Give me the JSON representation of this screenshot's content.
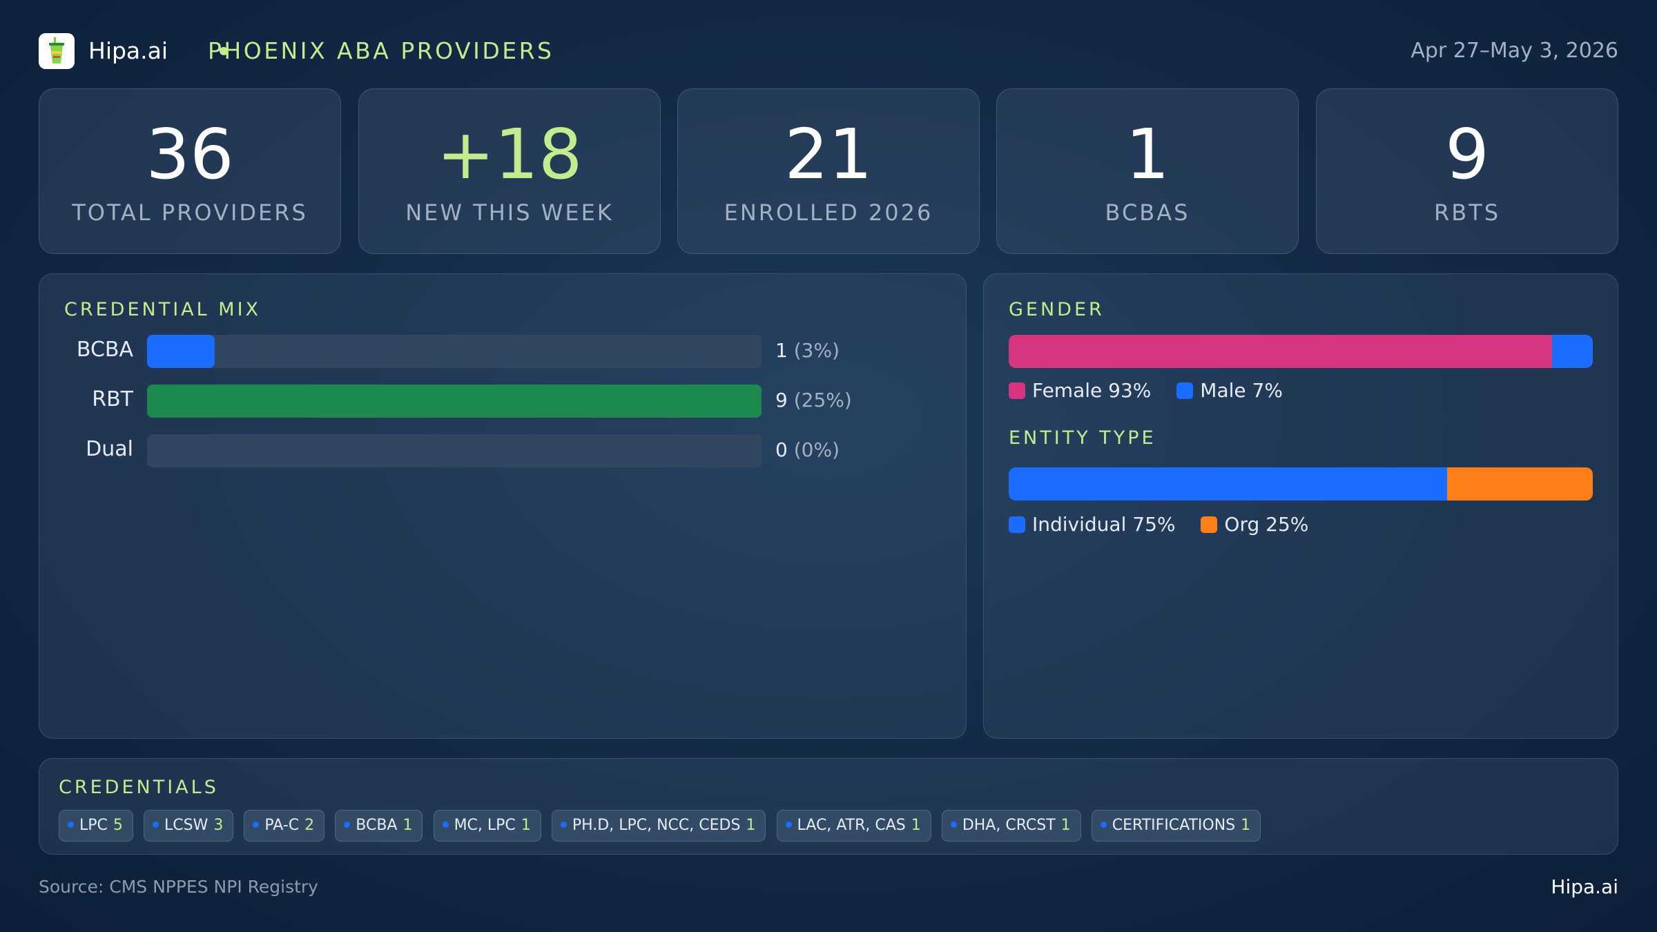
{
  "header": {
    "logo_icon": "cup-icon",
    "brand": "Hipa.ai",
    "title": "PHOENIX ABA PROVIDERS",
    "date_range": "Apr 27–May 3, 2026"
  },
  "kpis": [
    {
      "value": "36",
      "label": "TOTAL PROVIDERS"
    },
    {
      "value": "+18",
      "label": "NEW THIS WEEK"
    },
    {
      "value": "21",
      "label": "ENROLLED 2026"
    },
    {
      "value": "1",
      "label": "BCBAS"
    },
    {
      "value": "9",
      "label": "RBTS"
    }
  ],
  "credential_mix": {
    "title": "CREDENTIAL MIX",
    "rows": [
      {
        "label": "BCBA",
        "count": "1",
        "pct_text": "(3%)",
        "fraction": 0.11,
        "color": "#1a6dff"
      },
      {
        "label": "RBT",
        "count": "9",
        "pct_text": "(25%)",
        "fraction": 1.0,
        "color": "#1c8a4f"
      },
      {
        "label": "Dual",
        "count": "0",
        "pct_text": "(0%)",
        "fraction": 0.0,
        "color": "#1a6dff"
      }
    ]
  },
  "gender": {
    "title": "GENDER",
    "segments": [
      {
        "label": "Female 93%",
        "fraction": 0.93,
        "color": "#d6357f"
      },
      {
        "label": "Male 7%",
        "fraction": 0.07,
        "color": "#1a6dff"
      }
    ]
  },
  "entity_type": {
    "title": "ENTITY TYPE",
    "segments": [
      {
        "label": "Individual 75%",
        "fraction": 0.75,
        "color": "#1a6dff"
      },
      {
        "label": "Org 25%",
        "fraction": 0.25,
        "color": "#ff7e1a"
      }
    ]
  },
  "credentials": {
    "title": "CREDENTIALS",
    "chips": [
      {
        "name": "LPC",
        "count": "5"
      },
      {
        "name": "LCSW",
        "count": "3"
      },
      {
        "name": "PA-C",
        "count": "2"
      },
      {
        "name": "BCBA",
        "count": "1"
      },
      {
        "name": "MC, LPC",
        "count": "1"
      },
      {
        "name": "PH.D, LPC, NCC, CEDS",
        "count": "1"
      },
      {
        "name": "LAC, ATR, CAS",
        "count": "1"
      },
      {
        "name": "DHA, CRCST",
        "count": "1"
      },
      {
        "name": "CERTIFICATIONS",
        "count": "1"
      }
    ]
  },
  "footer": {
    "source": "Source: CMS NPPES NPI Registry",
    "brand": "Hipa.ai"
  }
}
